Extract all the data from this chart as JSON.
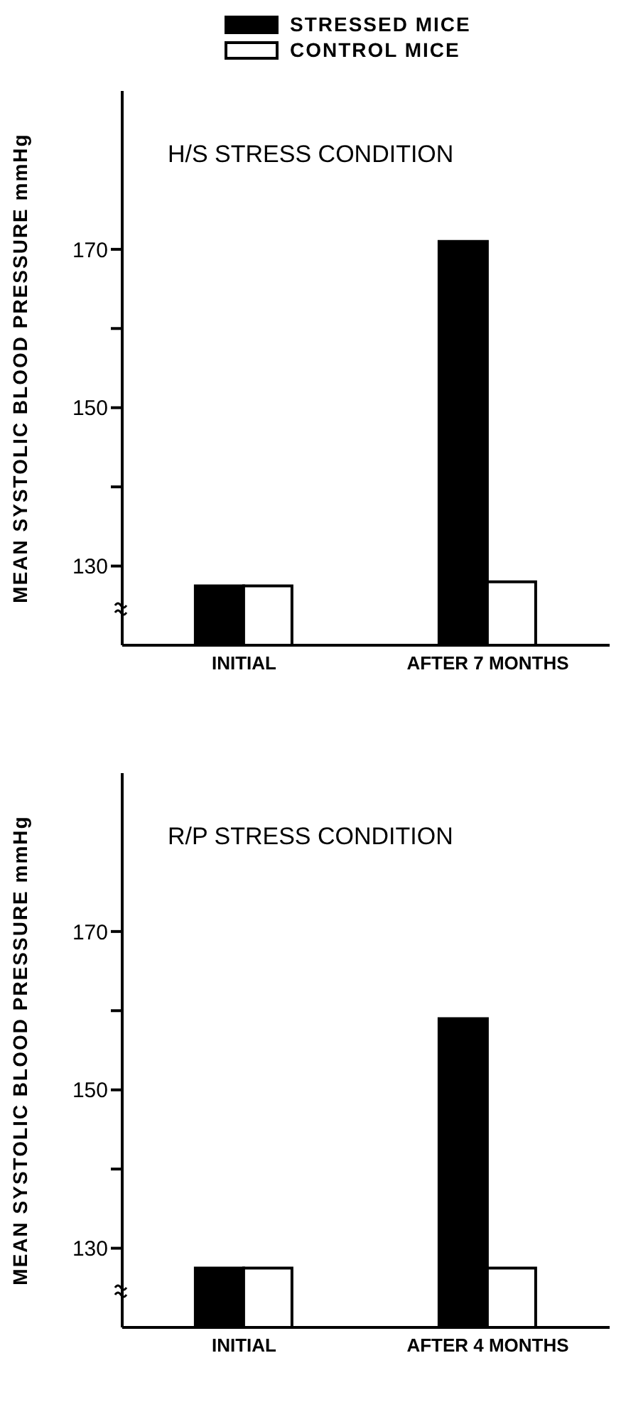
{
  "chart_data": [
    {
      "type": "bar",
      "title": "H/S STRESS CONDITION",
      "ylabel": "MEAN SYSTOLIC BLOOD PRESSURE mmHg",
      "categories": [
        "INITIAL",
        "AFTER 7 MONTHS"
      ],
      "series": [
        {
          "name": "STRESSED MICE",
          "color": "#000000",
          "values": [
            127.5,
            171
          ]
        },
        {
          "name": "CONTROL MICE",
          "color": "#ffffff",
          "values": [
            127.5,
            128
          ]
        }
      ],
      "ylim": [
        120,
        190
      ],
      "yticks": [
        {
          "value": 130,
          "label": "130"
        },
        {
          "value": 140,
          "label": null
        },
        {
          "value": 150,
          "label": "150"
        },
        {
          "value": 160,
          "label": null
        },
        {
          "value": 170,
          "label": "170"
        }
      ],
      "grid": false,
      "legend": "top"
    },
    {
      "type": "bar",
      "title": "R/P STRESS CONDITION",
      "ylabel": "MEAN SYSTOLIC BLOOD PRESSURE mmHg",
      "categories": [
        "INITIAL",
        "AFTER 4 MONTHS"
      ],
      "series": [
        {
          "color": "#000000",
          "values": [
            127.5,
            159
          ]
        },
        {
          "color": "#ffffff",
          "values": [
            127.5,
            127.5
          ]
        }
      ],
      "ylim": [
        120,
        190
      ],
      "yticks": [
        {
          "value": 130,
          "label": "130"
        },
        {
          "value": 140,
          "label": null
        },
        {
          "value": 150,
          "label": "150"
        },
        {
          "value": 160,
          "label": null
        },
        {
          "value": 170,
          "label": "170"
        }
      ],
      "grid": false
    }
  ]
}
